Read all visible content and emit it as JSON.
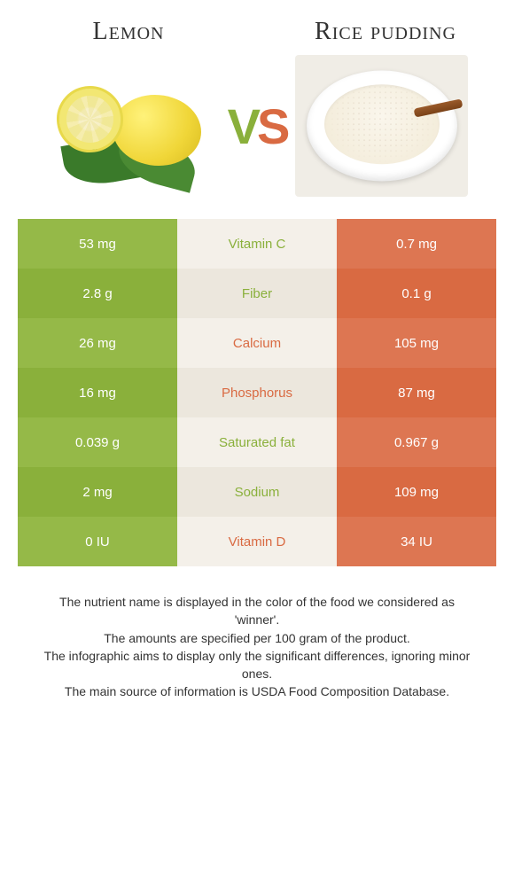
{
  "header": {
    "left_title": "Lemon",
    "right_title": "Rice pudding",
    "vs_v": "V",
    "vs_s": "S"
  },
  "colors": {
    "left_food": "#8ab03b",
    "right_food": "#d96a42",
    "left_stripe_a": "#95b948",
    "left_stripe_b": "#8ab03b",
    "mid_stripe_a": "#f4f0e9",
    "mid_stripe_b": "#ece7dd",
    "right_stripe_a": "#dd7652",
    "right_stripe_b": "#d96a42"
  },
  "rows": [
    {
      "nutrient": "Vitamin C",
      "left": "53 mg",
      "right": "0.7 mg",
      "winner": "left"
    },
    {
      "nutrient": "Fiber",
      "left": "2.8 g",
      "right": "0.1 g",
      "winner": "left"
    },
    {
      "nutrient": "Calcium",
      "left": "26 mg",
      "right": "105 mg",
      "winner": "right"
    },
    {
      "nutrient": "Phosphorus",
      "left": "16 mg",
      "right": "87 mg",
      "winner": "right"
    },
    {
      "nutrient": "Saturated fat",
      "left": "0.039 g",
      "right": "0.967 g",
      "winner": "left"
    },
    {
      "nutrient": "Sodium",
      "left": "2 mg",
      "right": "109 mg",
      "winner": "left"
    },
    {
      "nutrient": "Vitamin D",
      "left": "0 IU",
      "right": "34 IU",
      "winner": "right"
    }
  ],
  "footer": {
    "line1": "The nutrient name is displayed in the color of the food we considered as 'winner'.",
    "line2": "The amounts are specified per 100 gram of the product.",
    "line3": "The infographic aims to display only the significant differences, ignoring minor ones.",
    "line4": "The main source of information is USDA Food Composition Database."
  }
}
